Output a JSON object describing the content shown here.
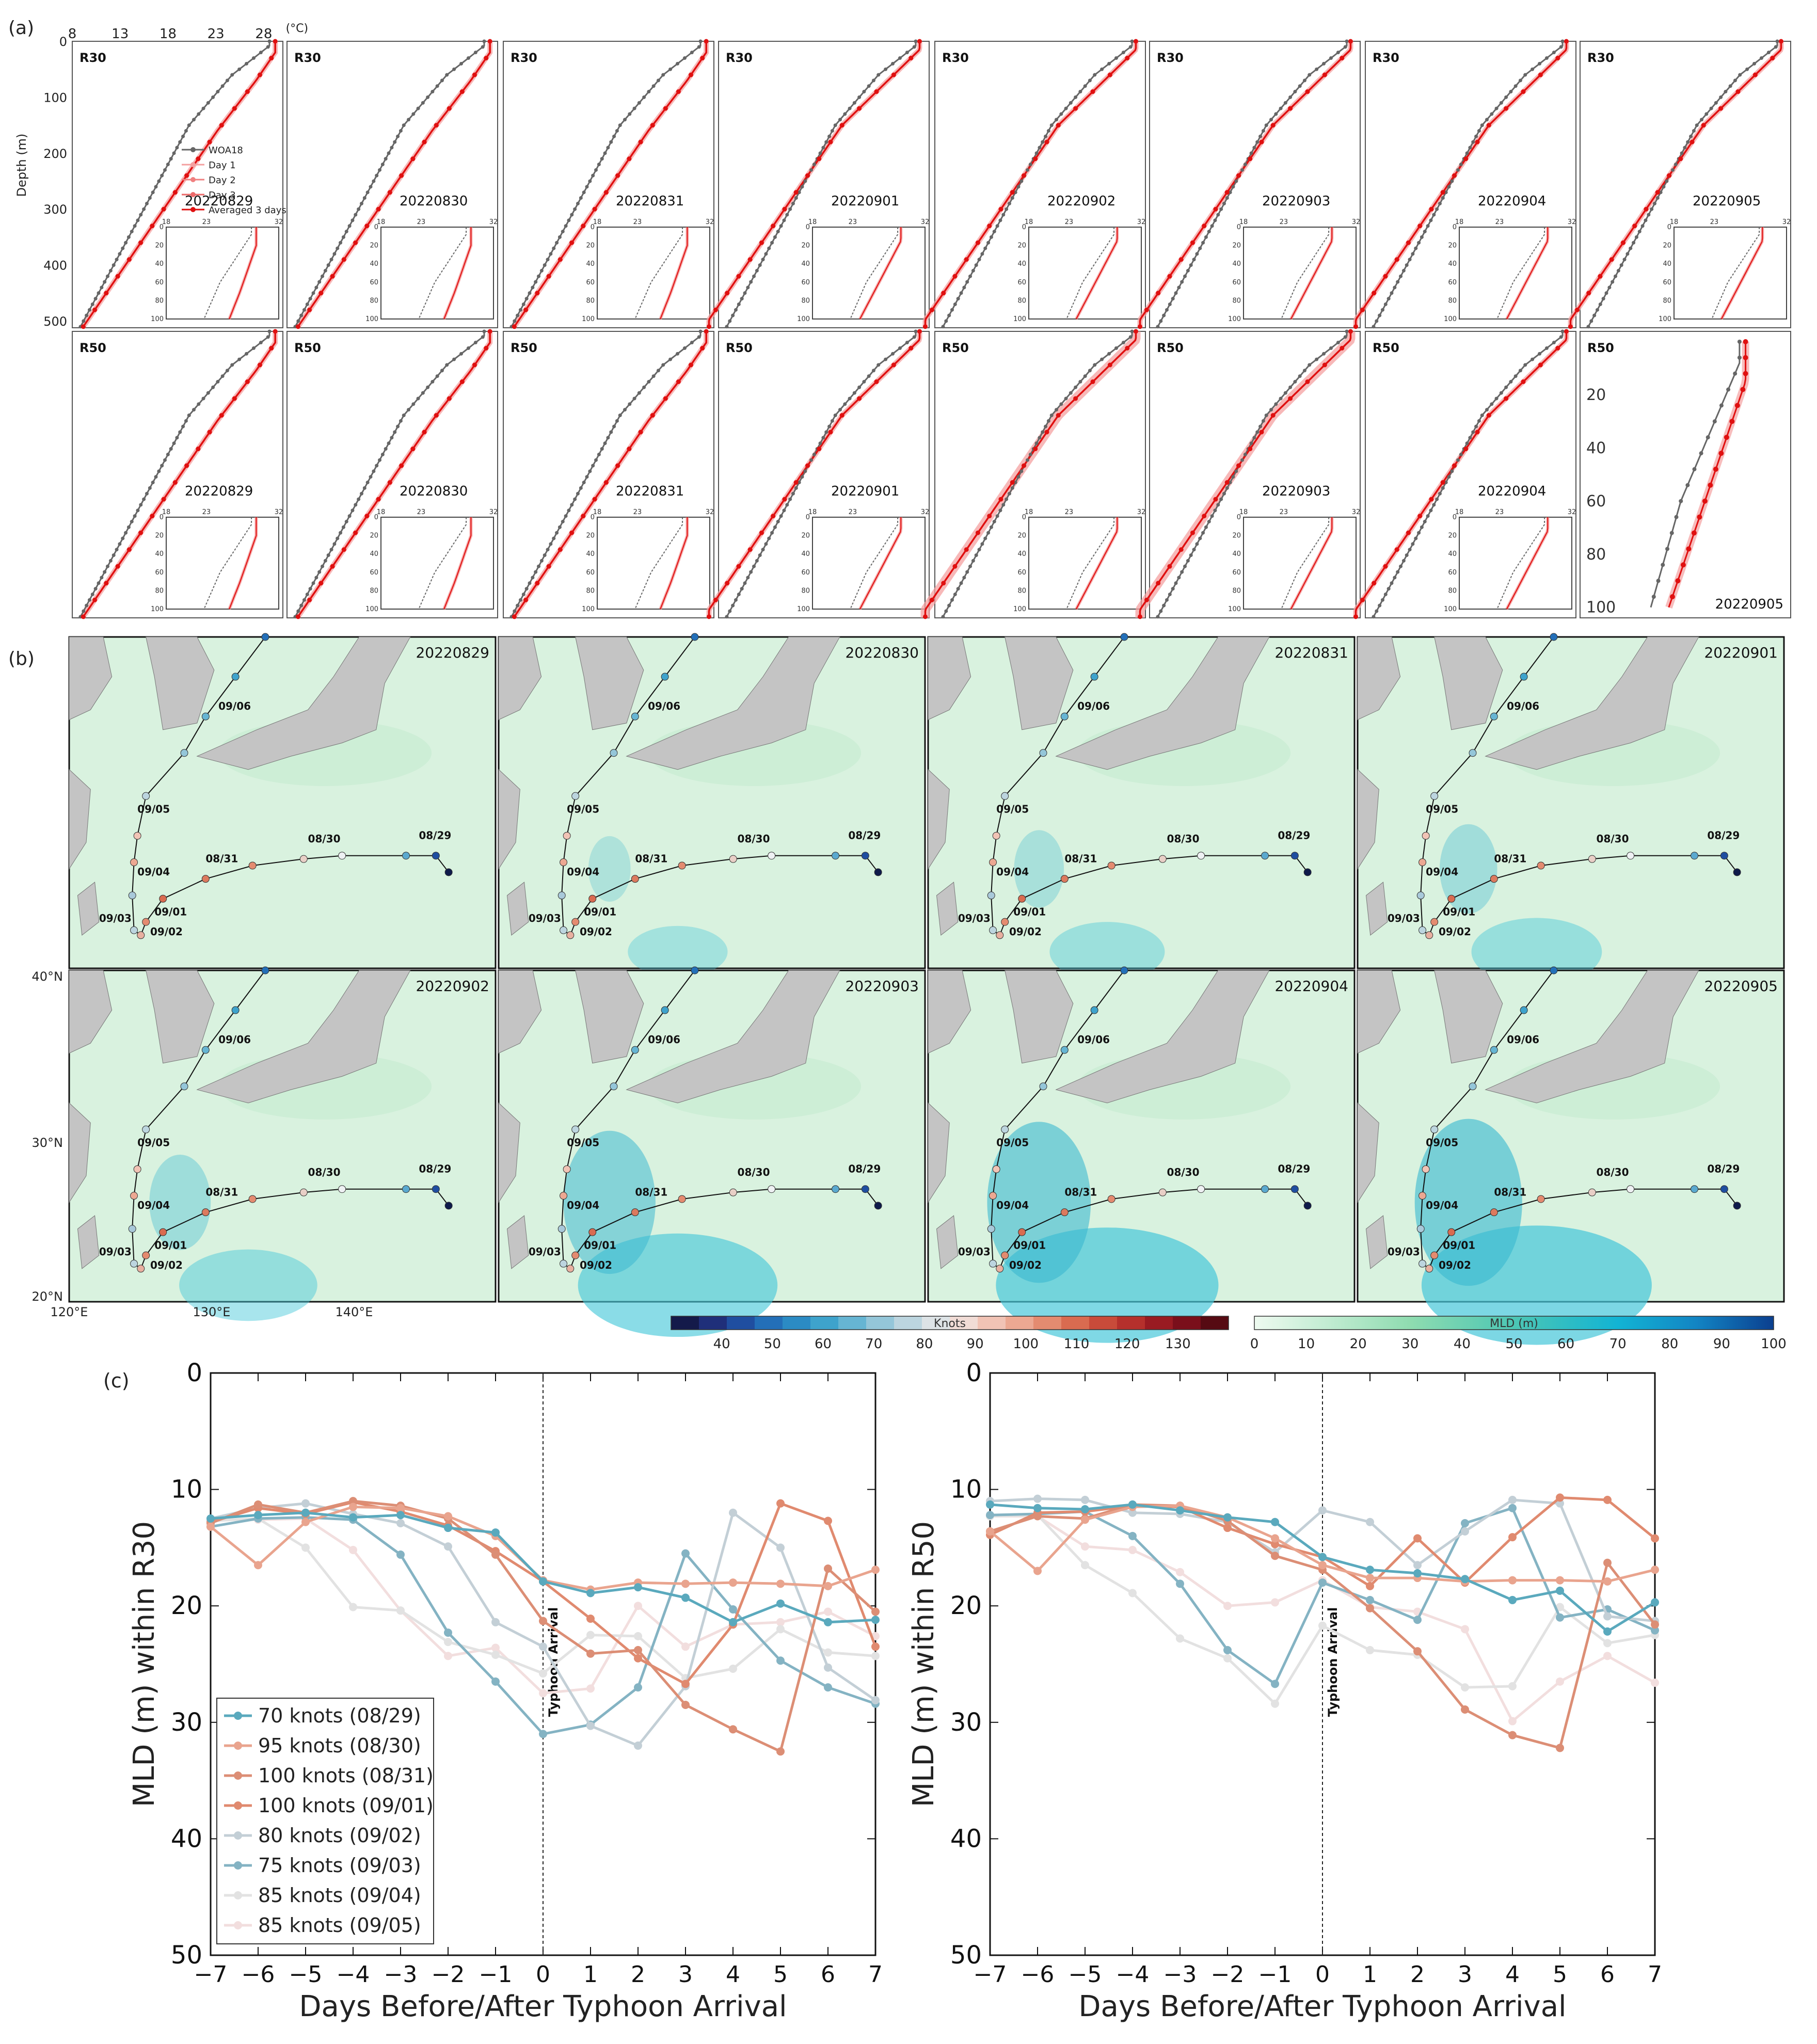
{
  "panel_labels": {
    "a": "(a)",
    "b": "(b)",
    "c": "(c)"
  },
  "profiles": {
    "temp_ticks": [
      8,
      13,
      18,
      23,
      28
    ],
    "temp_unit": "(°C)",
    "depth_ticks": [
      0,
      100,
      200,
      300,
      400,
      500
    ],
    "ylabel": "Depth (m)",
    "row_labels": [
      "R30",
      "R50"
    ],
    "dates": [
      "20220829",
      "20220830",
      "20220831",
      "20220901",
      "20220902",
      "20220903",
      "20220904",
      "20220905"
    ],
    "inset_x_ticks": [
      18,
      23,
      32
    ],
    "inset_y_ticks": [
      0,
      20,
      40,
      60,
      80,
      100
    ],
    "zoom_y_ticks": [
      20,
      40,
      60,
      80,
      100
    ],
    "legend": [
      "WOA18",
      "Day 1",
      "Day 2",
      "Day 3",
      "Averaged 3 days"
    ]
  },
  "maps": {
    "dates": [
      "20220829",
      "20220830",
      "20220831",
      "20220901",
      "20220902",
      "20220903",
      "20220904",
      "20220905"
    ],
    "lat_labels": [
      "40°N",
      "30°N",
      "20°N"
    ],
    "lon_labels": [
      "120°E",
      "130°E",
      "140°E"
    ],
    "track_labels": [
      "08/29",
      "08/30",
      "08/31",
      "09/01",
      "09/02",
      "09/03",
      "09/04",
      "09/05",
      "09/06"
    ],
    "knots_label": "Knots",
    "knots_ticks": [
      "40",
      "50",
      "60",
      "70",
      "80",
      "90",
      "100",
      "110",
      "120",
      "130"
    ],
    "knots_colors": [
      "#141a4a",
      "#1f2f7a",
      "#1f4ea0",
      "#236fb8",
      "#2b8bc4",
      "#3ea3cc",
      "#66b5d3",
      "#94c6d9",
      "#bcd5df",
      "#dde3e6",
      "#f1dcd6",
      "#f1c3b5",
      "#eca892",
      "#e48b70",
      "#d96b50",
      "#c94b3a",
      "#b5302c",
      "#991b22",
      "#7a0f1b",
      "#560a12"
    ],
    "mld_label": "MLD (m)",
    "mld_ticks": [
      "0",
      "10",
      "20",
      "30",
      "40",
      "50",
      "60",
      "70",
      "80",
      "90",
      "100"
    ]
  },
  "chart_data": [
    {
      "type": "line",
      "title": "",
      "xlabel": "Days Before/After Typhoon Arrival",
      "ylabel": "MLD (m) within R30",
      "xlim": [
        -7,
        7
      ],
      "ylim": [
        50,
        0
      ],
      "x": [
        -7,
        -6,
        -5,
        -4,
        -3,
        -2,
        -1,
        0,
        1,
        2,
        3,
        4,
        5,
        6,
        7
      ],
      "annotation": "Typhoon Arrival",
      "series": [
        {
          "name": "70 knots (08/29)",
          "color": "#5aa9bd",
          "values": [
            12.5,
            12.2,
            12.0,
            12.4,
            12.2,
            13.3,
            13.7,
            17.9,
            18.9,
            18.4,
            19.3,
            21.4,
            19.8,
            21.4,
            21.2
          ]
        },
        {
          "name": "95 knots (08/30)",
          "color": "#e9a48e",
          "values": [
            13.2,
            16.5,
            12.8,
            11.5,
            11.6,
            12.3,
            14.0,
            17.8,
            18.6,
            18.0,
            18.1,
            18.0,
            18.1,
            18.3,
            16.9
          ]
        },
        {
          "name": "100 knots (08/31)",
          "color": "#dc8e75",
          "values": [
            12.9,
            11.3,
            12.0,
            11.0,
            11.4,
            12.5,
            15.6,
            21.3,
            24.1,
            23.8,
            28.5,
            30.6,
            32.5,
            16.8,
            20.5
          ]
        },
        {
          "name": "100 knots (09/01)",
          "color": "#e08a6f",
          "values": [
            12.8,
            11.6,
            12.1,
            11.1,
            11.9,
            13.1,
            15.3,
            17.9,
            21.1,
            24.5,
            26.7,
            21.6,
            11.2,
            12.7,
            23.5
          ]
        },
        {
          "name": "80 knots (09/02)",
          "color": "#c3cfd6",
          "values": [
            12.5,
            11.6,
            11.2,
            12.1,
            12.9,
            14.9,
            21.4,
            23.5,
            30.3,
            32.0,
            26.9,
            12.0,
            15.0,
            25.3,
            28.1
          ]
        },
        {
          "name": "75 knots (09/03)",
          "color": "#84b3c3",
          "values": [
            13.2,
            12.5,
            12.4,
            12.6,
            15.6,
            22.3,
            26.5,
            31.0,
            30.2,
            27.0,
            15.5,
            20.3,
            24.7,
            27.0,
            28.4
          ]
        },
        {
          "name": "85 knots (09/04)",
          "color": "#e2e2e2",
          "values": [
            12.7,
            12.5,
            15.0,
            20.1,
            20.4,
            23.1,
            24.2,
            25.8,
            22.5,
            22.6,
            26.2,
            25.4,
            22.0,
            24.0,
            24.3
          ]
        },
        {
          "name": "85 knots (09/05)",
          "color": "#f2dede",
          "values": [
            12.6,
            12.6,
            12.5,
            15.2,
            20.4,
            24.3,
            23.6,
            27.5,
            27.1,
            20.0,
            23.5,
            21.6,
            21.4,
            20.5,
            22.6
          ]
        }
      ]
    },
    {
      "type": "line",
      "title": "",
      "xlabel": "Days Before/After Typhoon Arrival",
      "ylabel": "MLD (m) within R50",
      "xlim": [
        -7,
        7
      ],
      "ylim": [
        50,
        0
      ],
      "x": [
        -7,
        -6,
        -5,
        -4,
        -3,
        -2,
        -1,
        0,
        1,
        2,
        3,
        4,
        5,
        6,
        7
      ],
      "annotation": "Typhoon Arrival",
      "series": [
        {
          "name": "70 knots (08/29)",
          "color": "#5aa9bd",
          "values": [
            11.3,
            11.6,
            11.7,
            11.3,
            11.8,
            12.4,
            12.8,
            15.8,
            16.9,
            17.2,
            17.7,
            19.5,
            18.7,
            22.2,
            19.7
          ]
        },
        {
          "name": "95 knots (08/30)",
          "color": "#e9a48e",
          "values": [
            13.6,
            17.0,
            12.6,
            11.5,
            11.4,
            12.4,
            14.2,
            16.5,
            17.6,
            17.6,
            17.9,
            17.8,
            17.8,
            17.9,
            16.9
          ]
        },
        {
          "name": "100 knots (08/31)",
          "color": "#dc8e75",
          "values": [
            13.6,
            12.3,
            12.5,
            11.3,
            11.4,
            12.7,
            15.7,
            16.9,
            20.2,
            23.9,
            28.9,
            31.1,
            32.2,
            16.3,
            21.6
          ]
        },
        {
          "name": "100 knots (09/01)",
          "color": "#e08a6f",
          "values": [
            13.9,
            12.0,
            11.9,
            11.4,
            11.5,
            13.3,
            14.7,
            15.8,
            18.3,
            14.2,
            18.0,
            14.1,
            10.7,
            10.9,
            14.2
          ]
        },
        {
          "name": "80 knots (09/02)",
          "color": "#c3cfd6",
          "values": [
            11.0,
            10.8,
            10.9,
            12.0,
            12.1,
            12.8,
            15.4,
            11.8,
            12.8,
            16.5,
            13.6,
            10.9,
            11.2,
            20.9,
            21.3
          ]
        },
        {
          "name": "75 knots (09/03)",
          "color": "#84b3c3",
          "values": [
            12.2,
            12.1,
            11.9,
            14.0,
            18.1,
            23.8,
            26.7,
            18.0,
            19.5,
            21.2,
            12.9,
            11.6,
            21.0,
            20.3,
            22.1
          ]
        },
        {
          "name": "85 knots (09/04)",
          "color": "#e2e2e2",
          "values": [
            12.3,
            12.2,
            16.5,
            18.9,
            22.8,
            24.5,
            28.4,
            21.7,
            23.8,
            24.2,
            27.0,
            26.9,
            20.1,
            23.2,
            22.5
          ]
        },
        {
          "name": "85 knots (09/05)",
          "color": "#f2dede",
          "values": [
            12.3,
            12.3,
            14.9,
            15.2,
            17.1,
            20.0,
            19.7,
            17.8,
            20.1,
            20.5,
            22.0,
            29.9,
            26.5,
            24.3,
            26.6
          ]
        }
      ]
    }
  ]
}
